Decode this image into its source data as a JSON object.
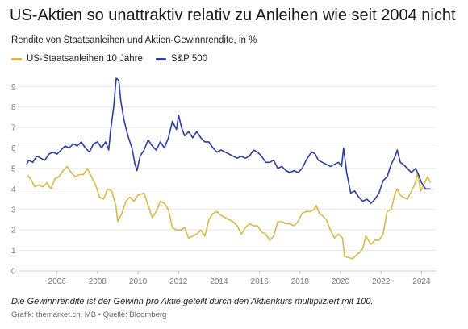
{
  "chart_data": {
    "type": "line",
    "title": "US-Aktien so unattraktiv relativ zu Anleihen wie seit 2004 nicht",
    "subtitle": "Rendite von Staatsanleihen und Aktien-Gewinnrendite, in %",
    "xlim": [
      2004.3,
      2024.7
    ],
    "ylim": [
      0,
      9.6
    ],
    "y_ticks": [
      0,
      1,
      2,
      3,
      4,
      5,
      6,
      7,
      8,
      9
    ],
    "x_ticks": [
      2006,
      2008,
      2010,
      2012,
      2014,
      2016,
      2018,
      2020,
      2022,
      2024
    ],
    "grid": true,
    "legend_position": "top-left",
    "series": [
      {
        "name": "US-Staatsanleihen 10 Jahre",
        "color": "#d9b84a",
        "points": [
          [
            2004.5,
            4.7
          ],
          [
            2004.7,
            4.5
          ],
          [
            2004.9,
            4.1
          ],
          [
            2005.1,
            4.2
          ],
          [
            2005.3,
            4.1
          ],
          [
            2005.5,
            4.3
          ],
          [
            2005.7,
            4.0
          ],
          [
            2005.9,
            4.5
          ],
          [
            2006.1,
            4.6
          ],
          [
            2006.3,
            4.9
          ],
          [
            2006.5,
            5.1
          ],
          [
            2006.7,
            4.8
          ],
          [
            2006.9,
            4.6
          ],
          [
            2007.1,
            4.7
          ],
          [
            2007.3,
            4.7
          ],
          [
            2007.5,
            5.0
          ],
          [
            2007.7,
            4.6
          ],
          [
            2007.9,
            4.2
          ],
          [
            2008.1,
            3.6
          ],
          [
            2008.3,
            3.5
          ],
          [
            2008.5,
            4.0
          ],
          [
            2008.7,
            3.9
          ],
          [
            2008.9,
            3.2
          ],
          [
            2009.0,
            2.4
          ],
          [
            2009.2,
            2.8
          ],
          [
            2009.4,
            3.4
          ],
          [
            2009.6,
            3.6
          ],
          [
            2009.8,
            3.4
          ],
          [
            2010.0,
            3.7
          ],
          [
            2010.3,
            3.8
          ],
          [
            2010.5,
            3.2
          ],
          [
            2010.7,
            2.6
          ],
          [
            2010.9,
            2.9
          ],
          [
            2011.1,
            3.4
          ],
          [
            2011.3,
            3.3
          ],
          [
            2011.5,
            3.0
          ],
          [
            2011.7,
            2.1
          ],
          [
            2011.9,
            2.0
          ],
          [
            2012.1,
            2.0
          ],
          [
            2012.3,
            2.1
          ],
          [
            2012.5,
            1.6
          ],
          [
            2012.7,
            1.7
          ],
          [
            2012.9,
            1.8
          ],
          [
            2013.1,
            2.0
          ],
          [
            2013.3,
            1.7
          ],
          [
            2013.5,
            2.5
          ],
          [
            2013.7,
            2.8
          ],
          [
            2013.9,
            2.9
          ],
          [
            2014.1,
            2.7
          ],
          [
            2014.3,
            2.6
          ],
          [
            2014.5,
            2.5
          ],
          [
            2014.7,
            2.4
          ],
          [
            2014.9,
            2.2
          ],
          [
            2015.1,
            1.8
          ],
          [
            2015.3,
            2.1
          ],
          [
            2015.5,
            2.3
          ],
          [
            2015.7,
            2.2
          ],
          [
            2015.9,
            2.2
          ],
          [
            2016.1,
            1.9
          ],
          [
            2016.3,
            1.8
          ],
          [
            2016.5,
            1.5
          ],
          [
            2016.7,
            1.7
          ],
          [
            2016.9,
            2.4
          ],
          [
            2017.1,
            2.4
          ],
          [
            2017.3,
            2.3
          ],
          [
            2017.5,
            2.3
          ],
          [
            2017.7,
            2.2
          ],
          [
            2017.9,
            2.4
          ],
          [
            2018.1,
            2.8
          ],
          [
            2018.3,
            2.9
          ],
          [
            2018.5,
            2.9
          ],
          [
            2018.7,
            3.0
          ],
          [
            2018.8,
            3.2
          ],
          [
            2018.95,
            2.8
          ],
          [
            2019.1,
            2.7
          ],
          [
            2019.3,
            2.5
          ],
          [
            2019.5,
            2.0
          ],
          [
            2019.7,
            1.6
          ],
          [
            2019.9,
            1.8
          ],
          [
            2020.1,
            1.6
          ],
          [
            2020.2,
            0.7
          ],
          [
            2020.4,
            0.65
          ],
          [
            2020.6,
            0.6
          ],
          [
            2020.8,
            0.8
          ],
          [
            2020.95,
            0.9
          ],
          [
            2021.1,
            1.1
          ],
          [
            2021.25,
            1.7
          ],
          [
            2021.5,
            1.3
          ],
          [
            2021.7,
            1.5
          ],
          [
            2021.9,
            1.5
          ],
          [
            2022.1,
            1.8
          ],
          [
            2022.3,
            2.9
          ],
          [
            2022.5,
            3.0
          ],
          [
            2022.7,
            3.8
          ],
          [
            2022.8,
            4.0
          ],
          [
            2022.95,
            3.7
          ],
          [
            2023.1,
            3.6
          ],
          [
            2023.3,
            3.5
          ],
          [
            2023.5,
            3.9
          ],
          [
            2023.7,
            4.3
          ],
          [
            2023.8,
            4.8
          ],
          [
            2023.95,
            3.9
          ],
          [
            2024.1,
            4.2
          ],
          [
            2024.3,
            4.6
          ],
          [
            2024.45,
            4.3
          ]
        ]
      },
      {
        "name": "S&P 500",
        "color": "#2e3d9e",
        "points": [
          [
            2004.5,
            5.2
          ],
          [
            2004.6,
            5.4
          ],
          [
            2004.8,
            5.3
          ],
          [
            2005.0,
            5.6
          ],
          [
            2005.2,
            5.5
          ],
          [
            2005.4,
            5.4
          ],
          [
            2005.6,
            5.7
          ],
          [
            2005.8,
            5.8
          ],
          [
            2006.0,
            5.7
          ],
          [
            2006.2,
            5.9
          ],
          [
            2006.4,
            6.1
          ],
          [
            2006.6,
            6.0
          ],
          [
            2006.8,
            6.2
          ],
          [
            2007.0,
            6.1
          ],
          [
            2007.2,
            6.3
          ],
          [
            2007.4,
            6.0
          ],
          [
            2007.6,
            5.8
          ],
          [
            2007.8,
            6.2
          ],
          [
            2008.0,
            6.3
          ],
          [
            2008.2,
            6.0
          ],
          [
            2008.4,
            6.3
          ],
          [
            2008.55,
            5.9
          ],
          [
            2008.65,
            6.9
          ],
          [
            2008.8,
            8.0
          ],
          [
            2008.92,
            9.4
          ],
          [
            2009.05,
            9.3
          ],
          [
            2009.15,
            8.3
          ],
          [
            2009.3,
            7.4
          ],
          [
            2009.5,
            6.6
          ],
          [
            2009.7,
            6.0
          ],
          [
            2009.85,
            5.2
          ],
          [
            2009.95,
            4.9
          ],
          [
            2010.1,
            5.6
          ],
          [
            2010.3,
            5.9
          ],
          [
            2010.5,
            6.4
          ],
          [
            2010.7,
            6.1
          ],
          [
            2010.9,
            5.9
          ],
          [
            2011.1,
            6.3
          ],
          [
            2011.3,
            6.0
          ],
          [
            2011.5,
            6.5
          ],
          [
            2011.7,
            7.3
          ],
          [
            2011.9,
            6.9
          ],
          [
            2012.0,
            7.6
          ],
          [
            2012.15,
            7.0
          ],
          [
            2012.3,
            6.6
          ],
          [
            2012.5,
            6.8
          ],
          [
            2012.7,
            6.5
          ],
          [
            2012.9,
            6.8
          ],
          [
            2013.1,
            6.5
          ],
          [
            2013.3,
            6.3
          ],
          [
            2013.5,
            6.3
          ],
          [
            2013.7,
            6.0
          ],
          [
            2013.9,
            5.8
          ],
          [
            2014.1,
            5.9
          ],
          [
            2014.3,
            5.8
          ],
          [
            2014.5,
            5.7
          ],
          [
            2014.7,
            5.6
          ],
          [
            2014.9,
            5.5
          ],
          [
            2015.1,
            5.6
          ],
          [
            2015.3,
            5.5
          ],
          [
            2015.5,
            5.6
          ],
          [
            2015.7,
            5.9
          ],
          [
            2015.9,
            5.8
          ],
          [
            2016.1,
            5.6
          ],
          [
            2016.3,
            5.3
          ],
          [
            2016.5,
            5.3
          ],
          [
            2016.7,
            5.4
          ],
          [
            2016.9,
            5.0
          ],
          [
            2017.1,
            5.1
          ],
          [
            2017.3,
            4.9
          ],
          [
            2017.5,
            4.8
          ],
          [
            2017.7,
            4.9
          ],
          [
            2017.9,
            4.8
          ],
          [
            2018.1,
            5.0
          ],
          [
            2018.3,
            5.4
          ],
          [
            2018.5,
            5.7
          ],
          [
            2018.6,
            5.8
          ],
          [
            2018.75,
            5.7
          ],
          [
            2018.9,
            5.4
          ],
          [
            2019.1,
            5.3
          ],
          [
            2019.3,
            5.2
          ],
          [
            2019.5,
            5.1
          ],
          [
            2019.7,
            5.2
          ],
          [
            2019.9,
            5.3
          ],
          [
            2020.05,
            5.1
          ],
          [
            2020.15,
            6.0
          ],
          [
            2020.3,
            4.8
          ],
          [
            2020.5,
            3.8
          ],
          [
            2020.7,
            3.9
          ],
          [
            2020.9,
            3.6
          ],
          [
            2021.1,
            3.4
          ],
          [
            2021.3,
            3.5
          ],
          [
            2021.5,
            3.3
          ],
          [
            2021.7,
            3.5
          ],
          [
            2021.9,
            3.8
          ],
          [
            2022.1,
            4.4
          ],
          [
            2022.3,
            4.6
          ],
          [
            2022.5,
            5.2
          ],
          [
            2022.7,
            5.6
          ],
          [
            2022.8,
            5.9
          ],
          [
            2022.95,
            5.3
          ],
          [
            2023.1,
            5.2
          ],
          [
            2023.3,
            5.0
          ],
          [
            2023.5,
            4.8
          ],
          [
            2023.7,
            5.0
          ],
          [
            2023.85,
            4.7
          ],
          [
            2024.0,
            4.3
          ],
          [
            2024.2,
            4.0
          ],
          [
            2024.45,
            4.0
          ]
        ]
      }
    ]
  },
  "footnote": "Die Gewinnrendite ist der Gewinn pro Aktie geteilt durch den Aktienkurs multipliziert mit 100.",
  "source": "Grafik: themarket.ch, MB • Quelle: Bloomberg"
}
